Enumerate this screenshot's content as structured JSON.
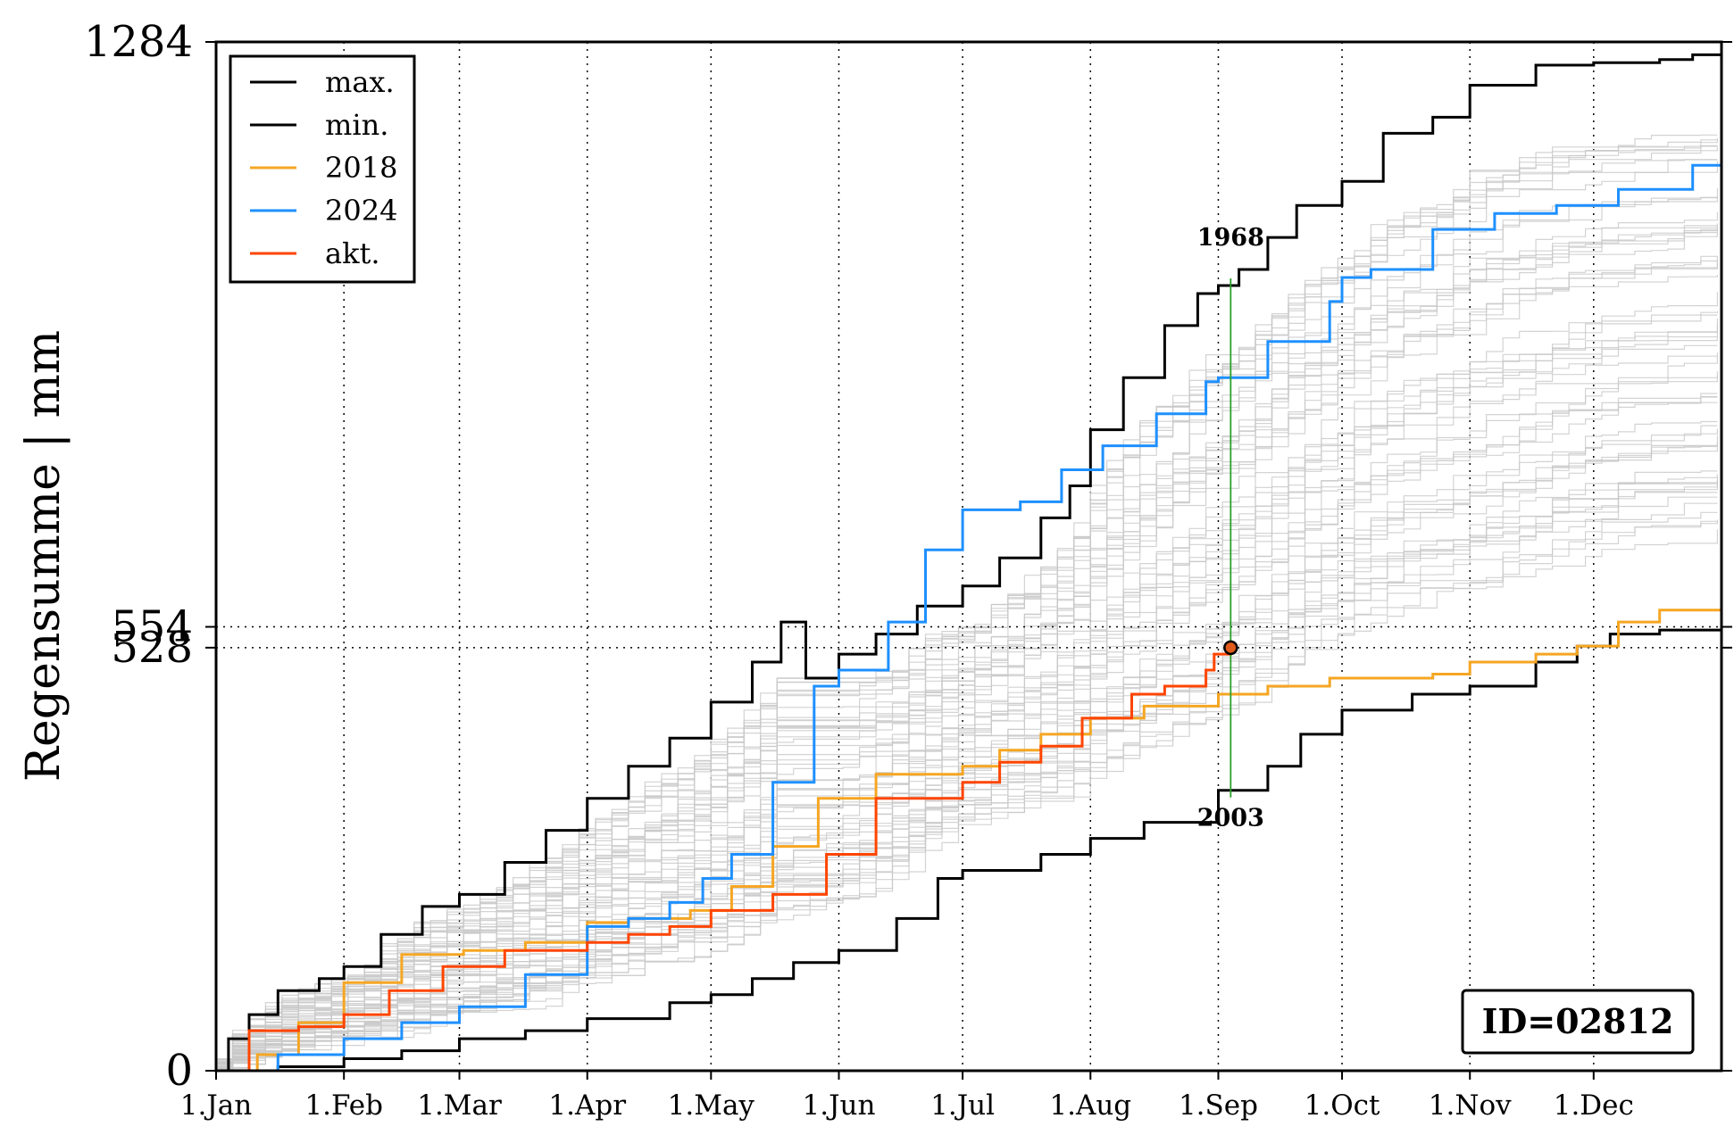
{
  "chart_data": {
    "type": "line",
    "title": "",
    "xlabel": "",
    "ylabel": "Regensumme | mm",
    "ylim": [
      0,
      1284
    ],
    "xlim": [
      0,
      365
    ],
    "x_ticks": [
      {
        "day": 0,
        "label": "1.Jan"
      },
      {
        "day": 31,
        "label": "1.Feb"
      },
      {
        "day": 59,
        "label": "1.Mar"
      },
      {
        "day": 90,
        "label": "1.Apr"
      },
      {
        "day": 120,
        "label": "1.May"
      },
      {
        "day": 151,
        "label": "1.Jun"
      },
      {
        "day": 181,
        "label": "1.Jul"
      },
      {
        "day": 212,
        "label": "1.Aug"
      },
      {
        "day": 243,
        "label": "1.Sep"
      },
      {
        "day": 273,
        "label": "1.Oct"
      },
      {
        "day": 304,
        "label": "1.Nov"
      },
      {
        "day": 334,
        "label": "1.Dec"
      }
    ],
    "y_ticks": [
      {
        "value": 0,
        "label": "0"
      },
      {
        "value": 528,
        "label": "528"
      },
      {
        "value": 554,
        "label": "554"
      },
      {
        "value": 1284,
        "label": "1284"
      }
    ],
    "hlines": [
      528,
      554
    ],
    "grid": "dotted, at x ticks",
    "legend_position": "top-left",
    "series": [
      {
        "name": "max.",
        "color": "#000000",
        "points": [
          [
            0,
            0
          ],
          [
            3,
            40
          ],
          [
            8,
            70
          ],
          [
            15,
            100
          ],
          [
            25,
            115
          ],
          [
            31,
            130
          ],
          [
            40,
            170
          ],
          [
            50,
            205
          ],
          [
            59,
            220
          ],
          [
            70,
            260
          ],
          [
            80,
            300
          ],
          [
            90,
            340
          ],
          [
            100,
            380
          ],
          [
            110,
            415
          ],
          [
            120,
            460
          ],
          [
            130,
            510
          ],
          [
            137,
            560
          ],
          [
            143,
            490
          ],
          [
            151,
            520
          ],
          [
            160,
            545
          ],
          [
            170,
            580
          ],
          [
            181,
            605
          ],
          [
            190,
            640
          ],
          [
            200,
            690
          ],
          [
            207,
            730
          ],
          [
            212,
            800
          ],
          [
            220,
            865
          ],
          [
            230,
            930
          ],
          [
            238,
            970
          ],
          [
            243,
            980
          ],
          [
            248,
            1000
          ],
          [
            255,
            1040
          ],
          [
            262,
            1080
          ],
          [
            273,
            1110
          ],
          [
            283,
            1170
          ],
          [
            295,
            1190
          ],
          [
            304,
            1230
          ],
          [
            320,
            1255
          ],
          [
            334,
            1258
          ],
          [
            350,
            1262
          ],
          [
            358,
            1268
          ],
          [
            365,
            1284
          ]
        ]
      },
      {
        "name": "min.",
        "color": "#000000",
        "points": [
          [
            0,
            0
          ],
          [
            15,
            5
          ],
          [
            31,
            15
          ],
          [
            45,
            25
          ],
          [
            59,
            40
          ],
          [
            75,
            50
          ],
          [
            90,
            65
          ],
          [
            110,
            85
          ],
          [
            120,
            95
          ],
          [
            130,
            115
          ],
          [
            140,
            135
          ],
          [
            151,
            150
          ],
          [
            165,
            190
          ],
          [
            175,
            240
          ],
          [
            181,
            250
          ],
          [
            200,
            270
          ],
          [
            212,
            290
          ],
          [
            225,
            310
          ],
          [
            243,
            350
          ],
          [
            255,
            380
          ],
          [
            263,
            420
          ],
          [
            273,
            450
          ],
          [
            290,
            470
          ],
          [
            304,
            480
          ],
          [
            320,
            510
          ],
          [
            330,
            530
          ],
          [
            338,
            545
          ],
          [
            350,
            550
          ],
          [
            365,
            554
          ]
        ]
      },
      {
        "name": "2018",
        "color": "#F5A623",
        "points": [
          [
            0,
            0
          ],
          [
            10,
            20
          ],
          [
            20,
            60
          ],
          [
            31,
            110
          ],
          [
            45,
            145
          ],
          [
            60,
            150
          ],
          [
            75,
            160
          ],
          [
            90,
            185
          ],
          [
            100,
            190
          ],
          [
            115,
            200
          ],
          [
            125,
            230
          ],
          [
            135,
            280
          ],
          [
            146,
            340
          ],
          [
            160,
            370
          ],
          [
            181,
            380
          ],
          [
            190,
            400
          ],
          [
            200,
            420
          ],
          [
            212,
            440
          ],
          [
            225,
            455
          ],
          [
            243,
            470
          ],
          [
            255,
            480
          ],
          [
            270,
            490
          ],
          [
            295,
            495
          ],
          [
            304,
            510
          ],
          [
            320,
            520
          ],
          [
            330,
            530
          ],
          [
            340,
            560
          ],
          [
            350,
            575
          ],
          [
            365,
            610
          ]
        ]
      },
      {
        "name": "2024",
        "color": "#1E90FF",
        "points": [
          [
            0,
            0
          ],
          [
            15,
            20
          ],
          [
            31,
            40
          ],
          [
            45,
            60
          ],
          [
            59,
            80
          ],
          [
            75,
            120
          ],
          [
            90,
            180
          ],
          [
            100,
            190
          ],
          [
            110,
            210
          ],
          [
            118,
            240
          ],
          [
            125,
            270
          ],
          [
            135,
            360
          ],
          [
            145,
            480
          ],
          [
            151,
            500
          ],
          [
            163,
            560
          ],
          [
            172,
            650
          ],
          [
            181,
            700
          ],
          [
            195,
            710
          ],
          [
            205,
            750
          ],
          [
            215,
            780
          ],
          [
            228,
            820
          ],
          [
            240,
            860
          ],
          [
            243,
            865
          ],
          [
            255,
            910
          ],
          [
            270,
            960
          ],
          [
            273,
            990
          ],
          [
            280,
            1000
          ],
          [
            295,
            1050
          ],
          [
            310,
            1070
          ],
          [
            325,
            1080
          ],
          [
            340,
            1100
          ],
          [
            358,
            1130
          ],
          [
            365,
            1150
          ]
        ]
      },
      {
        "name": "akt.",
        "color": "#FF4500",
        "points": [
          [
            0,
            0
          ],
          [
            8,
            50
          ],
          [
            20,
            55
          ],
          [
            31,
            70
          ],
          [
            42,
            100
          ],
          [
            55,
            130
          ],
          [
            70,
            150
          ],
          [
            90,
            160
          ],
          [
            100,
            170
          ],
          [
            110,
            180
          ],
          [
            120,
            200
          ],
          [
            135,
            220
          ],
          [
            148,
            270
          ],
          [
            160,
            340
          ],
          [
            172,
            340
          ],
          [
            181,
            360
          ],
          [
            190,
            385
          ],
          [
            200,
            405
          ],
          [
            210,
            440
          ],
          [
            222,
            470
          ],
          [
            230,
            480
          ],
          [
            240,
            500
          ],
          [
            242,
            520
          ],
          [
            246,
            528
          ]
        ]
      }
    ],
    "background_series": "many thin light-grey yearly traces between min. and max.",
    "current_point": {
      "day": 246,
      "value": 528
    },
    "annotations": [
      {
        "label": "1968",
        "day": 246,
        "value": 1000,
        "position": "above max. line"
      },
      {
        "label": "2003",
        "day": 246,
        "value": 350,
        "position": "below min. line"
      }
    ],
    "id_box": "ID=02812"
  },
  "colors": {
    "grid": "#000000",
    "background_traces": "#c8c8c8",
    "marker_line": "#2ca02c",
    "marker_fill": "#e05a1a"
  }
}
